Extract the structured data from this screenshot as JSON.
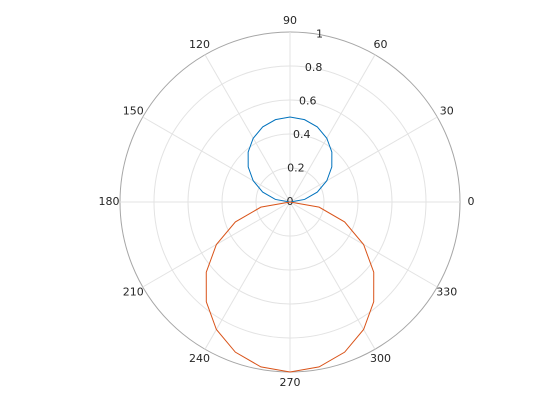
{
  "chart_data": {
    "type": "polar",
    "rlim": [
      0,
      1
    ],
    "rticks": [
      0,
      0.2,
      0.4,
      0.6,
      0.8,
      1
    ],
    "thetaticks": [
      0,
      30,
      60,
      90,
      120,
      150,
      180,
      210,
      240,
      270,
      300,
      330
    ],
    "grid": true,
    "series": [
      {
        "color": "#0072bd",
        "theta": [
          0,
          10,
          20,
          30,
          40,
          50,
          60,
          70,
          80,
          90,
          100,
          110,
          120,
          130,
          140,
          150,
          160,
          170,
          180
        ],
        "r": [
          0,
          0.087,
          0.171,
          0.25,
          0.321,
          0.383,
          0.433,
          0.47,
          0.492,
          0.5,
          0.492,
          0.47,
          0.433,
          0.383,
          0.321,
          0.25,
          0.171,
          0.087,
          0
        ]
      },
      {
        "color": "#d95319",
        "theta": [
          180,
          190,
          200,
          210,
          220,
          230,
          240,
          250,
          260,
          270,
          280,
          290,
          300,
          310,
          320,
          330,
          340,
          350,
          360
        ],
        "r": [
          0,
          0.174,
          0.342,
          0.5,
          0.643,
          0.766,
          0.866,
          0.94,
          0.985,
          1,
          0.985,
          0.94,
          0.866,
          0.766,
          0.643,
          0.5,
          0.342,
          0.174,
          0
        ]
      }
    ]
  }
}
